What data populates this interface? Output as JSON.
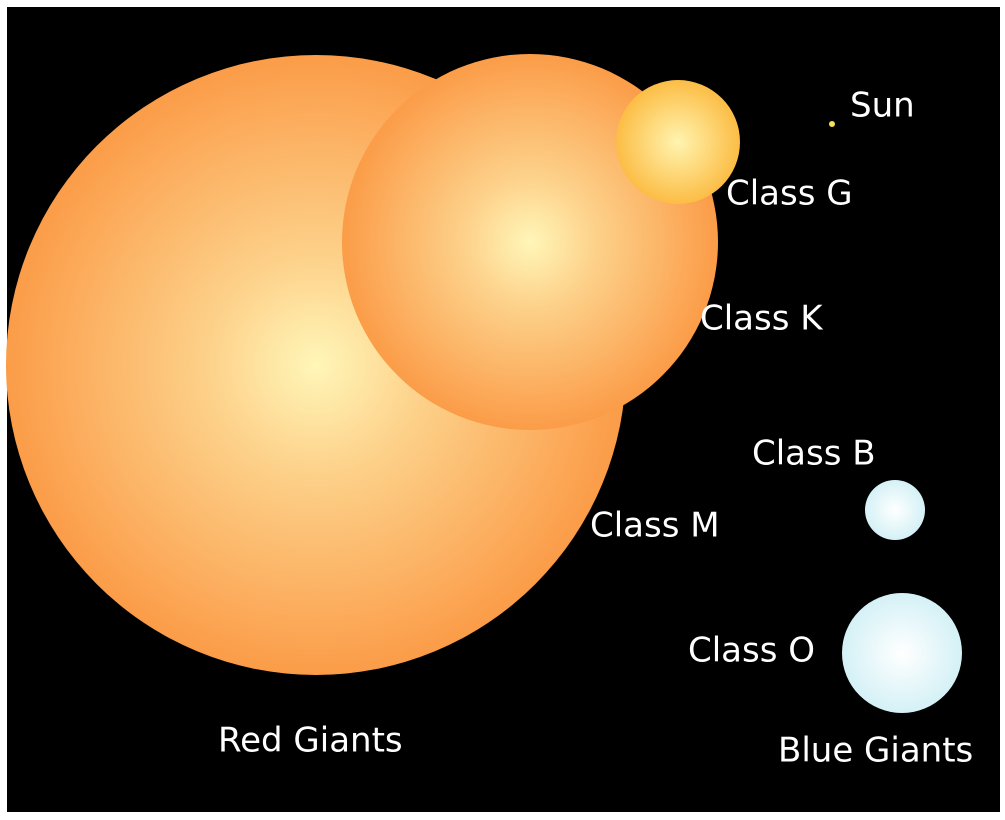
{
  "labels": {
    "sun": "Sun",
    "class_g": "Class G",
    "class_k": "Class K",
    "class_m": "Class M",
    "class_b": "Class B",
    "class_o": "Class O"
  },
  "groups": {
    "red": "Red Giants",
    "blue": "Blue Giants"
  }
}
